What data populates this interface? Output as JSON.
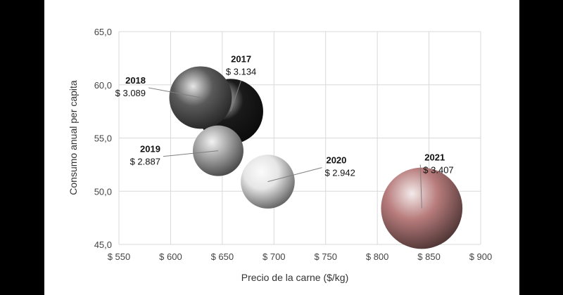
{
  "chart_data": {
    "type": "scatter",
    "subtype": "bubble",
    "xlabel": "Precio de la carne ($/kg)",
    "ylabel": "Consumo anual per capita",
    "xlim": [
      550,
      900
    ],
    "ylim": [
      45,
      65
    ],
    "x_ticks": [
      "$ 550",
      "$ 600",
      "$ 650",
      "$ 700",
      "$ 750",
      "$ 800",
      "$ 850",
      "$ 900"
    ],
    "y_ticks": [
      "45,0",
      "50,0",
      "55,0",
      "60,0",
      "65,0"
    ],
    "grid": true,
    "legend": "none",
    "points": [
      {
        "year": "2017",
        "x": 658,
        "y": 57.5,
        "size": 3.134,
        "size_label": "$ 3.134",
        "color": "#1a1a1a"
      },
      {
        "year": "2018",
        "x": 629,
        "y": 58.8,
        "size": 3.089,
        "size_label": "$ 3.089",
        "color": "#5a5a5a"
      },
      {
        "year": "2019",
        "x": 646,
        "y": 53.8,
        "size": 2.887,
        "size_label": "$ 2.887",
        "color": "#a6a6a6"
      },
      {
        "year": "2020",
        "x": 694,
        "y": 50.9,
        "size": 2.942,
        "size_label": "$ 2.942",
        "color": "#e6e6e6"
      },
      {
        "year": "2021",
        "x": 843,
        "y": 48.4,
        "size": 3.407,
        "size_label": "$ 3.407",
        "color": "#b87c7c"
      }
    ]
  }
}
